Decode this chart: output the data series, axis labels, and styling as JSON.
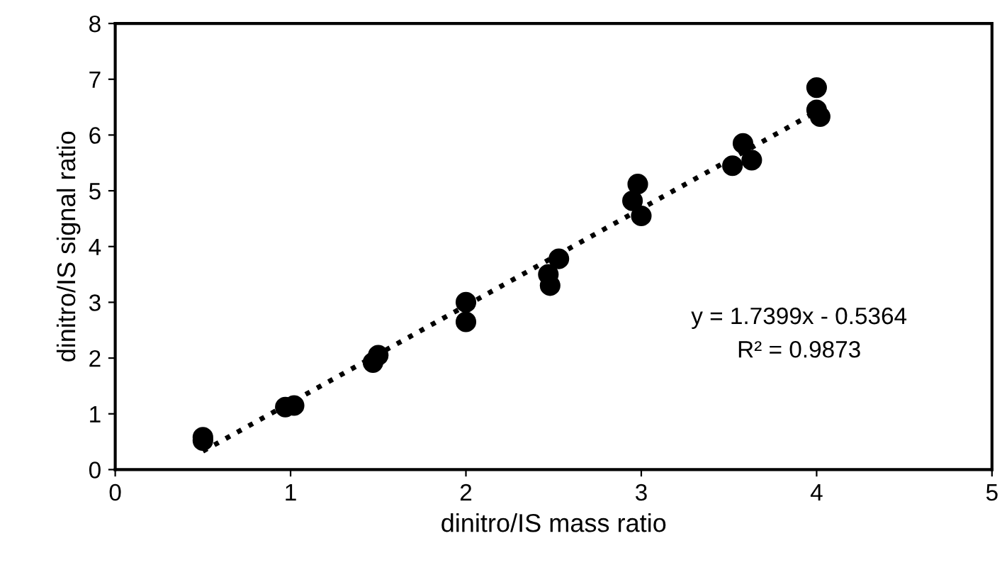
{
  "chart_data": {
    "type": "scatter",
    "xlabel": "dinitro/IS mass ratio",
    "ylabel": "dinitro/IS signal ratio",
    "xlim": [
      0,
      5
    ],
    "ylim": [
      0,
      8
    ],
    "xticks": [
      0,
      1,
      2,
      3,
      4,
      5
    ],
    "yticks": [
      0,
      1,
      2,
      3,
      4,
      5,
      6,
      7,
      8
    ],
    "grid": false,
    "legend": false,
    "series": [
      {
        "color": "#000000",
        "marker": "circle",
        "x": [
          0.5,
          0.5,
          0.97,
          1.02,
          1.47,
          1.5,
          2.0,
          2.0,
          2.47,
          2.48,
          2.53,
          2.95,
          2.98,
          3.0,
          3.52,
          3.58,
          3.63,
          4.0,
          4.0,
          4.02
        ],
        "values": [
          0.58,
          0.52,
          1.12,
          1.15,
          1.92,
          2.05,
          3.0,
          2.65,
          3.5,
          3.3,
          3.78,
          4.82,
          5.12,
          4.55,
          5.45,
          5.85,
          5.55,
          6.85,
          6.45,
          6.33
        ]
      },
      {
        "type": "line",
        "color": "#000000",
        "line_style": "dotted",
        "marker": "none",
        "x": [
          0.5,
          4.0
        ],
        "values": [
          0.33,
          6.42
        ]
      }
    ],
    "annotations": [
      "y = 1.7399x - 0.5364",
      "R² = 0.9873"
    ]
  }
}
